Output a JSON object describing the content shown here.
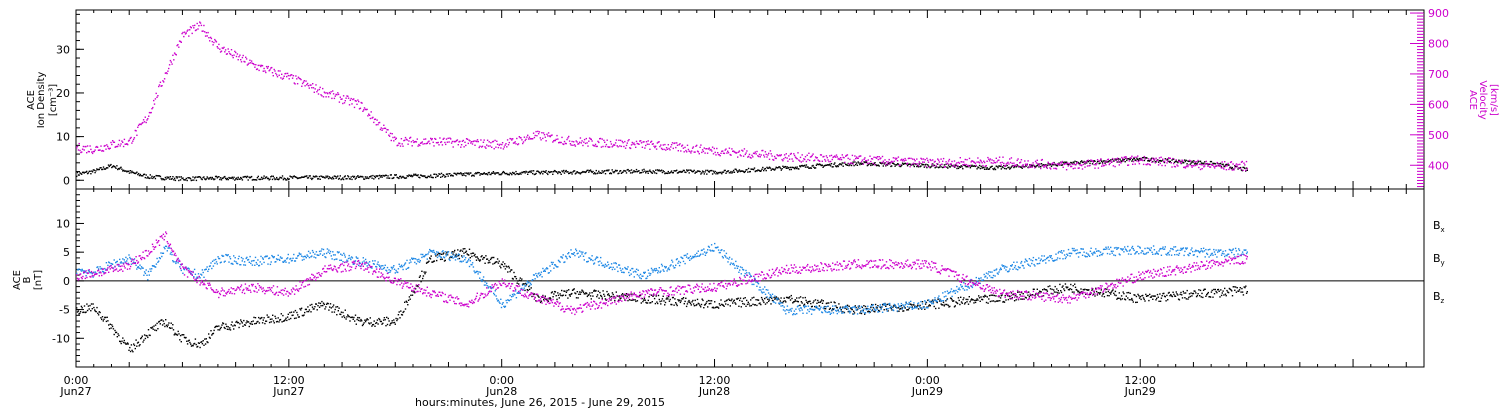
{
  "chart_data": [
    {
      "type": "scatter",
      "panel": "top",
      "left_axis": {
        "label_lines": [
          "ACE",
          "Ion Density",
          "[cm⁻³]"
        ],
        "range": [
          -2,
          39
        ],
        "ticks": [
          0,
          10,
          20,
          30
        ]
      },
      "right_axis": {
        "label_lines": [
          "ACE",
          "Velocity",
          "[km/s]"
        ],
        "range": [
          322,
          910
        ],
        "ticks": [
          400,
          500,
          600,
          700,
          800,
          900
        ],
        "color": "#cc00cc"
      },
      "series": [
        {
          "axis": "left",
          "color": "#000000",
          "x": [
            0,
            1,
            2,
            3,
            4,
            5,
            6,
            8,
            12,
            16,
            20,
            24,
            28,
            32,
            36,
            40,
            44,
            48,
            52,
            56,
            60,
            64,
            66
          ],
          "y": [
            1.5,
            2.2,
            3.5,
            2.0,
            1.0,
            0.7,
            0.5,
            0.6,
            0.7,
            0.8,
            1.2,
            1.8,
            2.0,
            2.2,
            2.0,
            3.0,
            4.0,
            3.5,
            3.0,
            4.0,
            5.0,
            4.0,
            2.5
          ]
        },
        {
          "axis": "right",
          "color": "#cc00cc",
          "x": [
            0,
            1,
            2,
            3,
            4,
            5,
            6,
            7,
            8,
            10,
            12,
            14,
            16,
            18,
            20,
            24,
            26,
            28,
            32,
            36,
            40,
            44,
            48,
            52,
            56,
            60,
            62,
            64,
            66
          ],
          "y": [
            460,
            455,
            470,
            480,
            560,
            700,
            830,
            860,
            790,
            730,
            690,
            640,
            600,
            480,
            480,
            470,
            500,
            480,
            470,
            450,
            430,
            420,
            410,
            415,
            400,
            420,
            410,
            400,
            400
          ]
        }
      ]
    },
    {
      "type": "scatter",
      "panel": "bottom",
      "left_axis": {
        "label_lines": [
          "ACE",
          "B",
          "[nT]"
        ],
        "range": [
          -15,
          16
        ],
        "ticks": [
          -10,
          -5,
          0,
          5,
          10
        ]
      },
      "series": [
        {
          "name": "Bx",
          "color": "#000000",
          "x": [
            0,
            1,
            2,
            3,
            4,
            5,
            6,
            7,
            8,
            10,
            12,
            14,
            16,
            18,
            20,
            22,
            24,
            26,
            28,
            32,
            36,
            40,
            44,
            48,
            52,
            56,
            60,
            64,
            66
          ],
          "y": [
            -5,
            -4.5,
            -8,
            -12,
            -9,
            -7,
            -10,
            -11,
            -8,
            -7,
            -6,
            -4,
            -7,
            -7,
            4,
            5,
            3,
            -3,
            -2,
            -3,
            -4,
            -3,
            -5,
            -4,
            -3,
            -1,
            -3,
            -2,
            -1.5
          ]
        },
        {
          "name": "By",
          "color": "#1e88e5",
          "x": [
            0,
            1,
            2,
            3,
            4,
            5,
            6,
            7,
            8,
            10,
            12,
            14,
            16,
            18,
            20,
            22,
            24,
            26,
            28,
            32,
            36,
            40,
            44,
            48,
            52,
            56,
            60,
            64,
            66
          ],
          "y": [
            2,
            1.5,
            3,
            4,
            1,
            6,
            2,
            1,
            4,
            3.5,
            4,
            5,
            3.5,
            2,
            5,
            4,
            -4,
            1,
            5,
            1,
            6,
            -5,
            -5,
            -4,
            2,
            5,
            5.5,
            5,
            5
          ]
        },
        {
          "name": "Bz",
          "color": "#cc00cc",
          "x": [
            0,
            1,
            2,
            3,
            4,
            5,
            6,
            7,
            8,
            10,
            12,
            14,
            16,
            18,
            20,
            22,
            24,
            26,
            28,
            32,
            36,
            40,
            44,
            48,
            52,
            56,
            60,
            64,
            66
          ],
          "y": [
            1,
            1.5,
            2,
            3,
            5,
            8,
            2,
            0,
            -2,
            -1,
            -2,
            2,
            3,
            0,
            -2,
            -4,
            0,
            -3,
            -5,
            -2,
            -1,
            2,
            3,
            3,
            -2,
            -3,
            1,
            3,
            4
          ]
        }
      ]
    }
  ],
  "x_axis": {
    "range": [
      0,
      76
    ],
    "time_labels": [
      "0:00",
      "12:00",
      "0:00",
      "12:00",
      "0:00",
      "12:00"
    ],
    "date_labels": [
      "Jun27",
      "Jun27",
      "Jun28",
      "Jun28",
      "Jun29",
      "Jun29"
    ],
    "label_hours": [
      0,
      12,
      24,
      36,
      48,
      60
    ],
    "caption": "hours:minutes, June 26, 2015 - June 29, 2015"
  },
  "legend": {
    "bx": {
      "base": "B",
      "sub": "x"
    },
    "by": {
      "base": "B",
      "sub": "y"
    },
    "bz": {
      "base": "B",
      "sub": "z"
    }
  }
}
